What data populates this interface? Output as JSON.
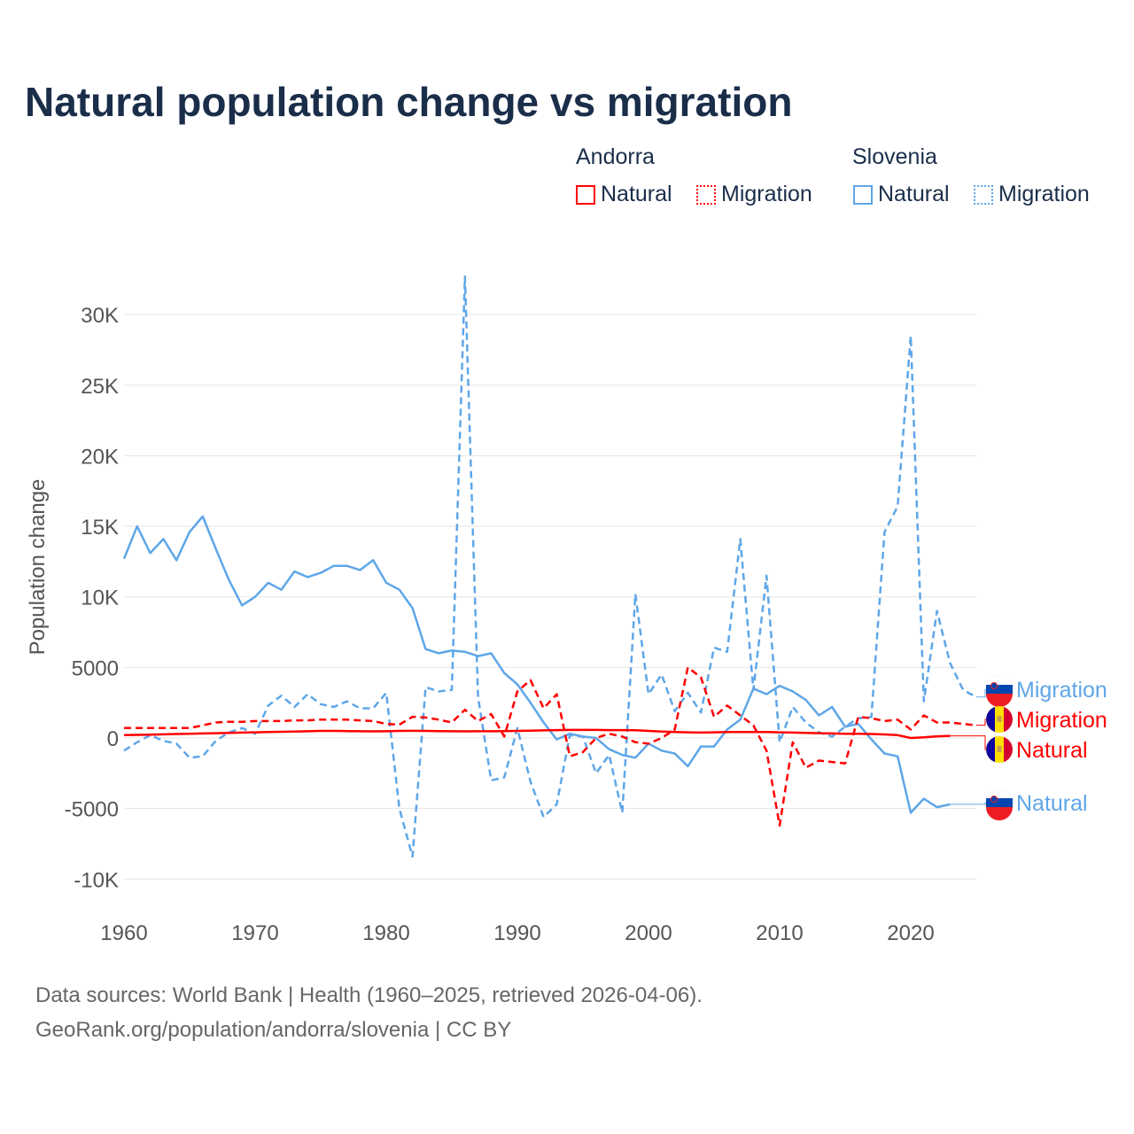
{
  "title": "Natural population change vs migration",
  "legend": {
    "groups": [
      {
        "name": "Andorra",
        "items": [
          {
            "label": "Natural",
            "style": "solid"
          },
          {
            "label": "Migration",
            "style": "dotted"
          }
        ]
      },
      {
        "name": "Slovenia",
        "items": [
          {
            "label": "Natural",
            "style": "solid"
          },
          {
            "label": "Migration",
            "style": "dotted"
          }
        ]
      }
    ]
  },
  "footer": {
    "line1": "Data sources: World Bank | Health (1960–2025, retrieved 2026-04-06).",
    "line2": "GeoRank.org/population/andorra/slovenia | CC BY"
  },
  "colors": {
    "andorra": "#ff0000",
    "slovenia": "#5ea6e8"
  },
  "chart_data": {
    "type": "line",
    "title": "Natural population change vs migration",
    "xlabel": "",
    "ylabel": "Population change",
    "xlim": [
      1960,
      2025
    ],
    "ylim": [
      -11000,
      33000
    ],
    "x_ticks": [
      1960,
      1970,
      1980,
      1990,
      2000,
      2010,
      2020
    ],
    "x_tick_labels": [
      "1960",
      "1970",
      "1980",
      "1990",
      "2000",
      "2010",
      "2020"
    ],
    "y_ticks": [
      -10000,
      -5000,
      0,
      5000,
      10000,
      15000,
      20000,
      25000,
      30000
    ],
    "y_tick_labels": [
      "-10K",
      "-5000",
      "0",
      "5000",
      "10K",
      "15K",
      "20K",
      "25K",
      "30K"
    ],
    "grid": true,
    "legend_position": "top-right",
    "series": [
      {
        "name": "Slovenia Natural",
        "country": "Slovenia",
        "kind": "natural",
        "color": "#5ea6e8",
        "dash": false,
        "start": 1960,
        "values": [
          12700,
          15000,
          13100,
          14100,
          12600,
          14600,
          15700,
          13400,
          11200,
          9400,
          10000,
          11000,
          10500,
          11800,
          11400,
          11700,
          12200,
          12200,
          11900,
          12600,
          11000,
          10500,
          9200,
          6300,
          6000,
          6200,
          6100,
          5800,
          6000,
          4600,
          3800,
          2500,
          1100,
          -100,
          300,
          100,
          0,
          -800,
          -1200,
          -1400,
          -400,
          -900,
          -1100,
          -2000,
          -600,
          -600,
          600,
          1300,
          3500,
          3100,
          3700,
          3300,
          2700,
          1600,
          2200,
          800,
          1000,
          -100,
          -1100,
          -1300,
          -5300,
          -4300,
          -4900,
          -4700
        ],
        "end_label": "Natural"
      },
      {
        "name": "Slovenia Migration",
        "country": "Slovenia",
        "kind": "migration",
        "color": "#5ea6e8",
        "dash": true,
        "start": 1960,
        "values": [
          -900,
          -300,
          200,
          -200,
          -400,
          -1400,
          -1300,
          -200,
          400,
          700,
          300,
          2300,
          3000,
          2200,
          3100,
          2400,
          2200,
          2600,
          2100,
          2100,
          3200,
          -5000,
          -8400,
          3600,
          3300,
          3400,
          32700,
          2900,
          -3000,
          -2800,
          700,
          -3100,
          -5600,
          -4700,
          200,
          100,
          -2500,
          -1200,
          -5300,
          10200,
          3100,
          4500,
          1900,
          3200,
          1800,
          6400,
          6100,
          14100,
          3400,
          11500,
          -300,
          2200,
          1100,
          400,
          100,
          800,
          1400,
          1500,
          14600,
          16400,
          28500,
          2600,
          9000,
          5300,
          3400,
          2900
        ],
        "end_label": "Migration"
      },
      {
        "name": "Andorra Natural",
        "country": "Andorra",
        "kind": "natural",
        "color": "#ff0000",
        "dash": false,
        "start": 1960,
        "values": [
          200,
          220,
          240,
          260,
          280,
          300,
          320,
          340,
          360,
          380,
          400,
          420,
          440,
          460,
          480,
          500,
          500,
          490,
          480,
          470,
          480,
          500,
          510,
          500,
          490,
          480,
          470,
          480,
          480,
          490,
          500,
          520,
          540,
          560,
          570,
          570,
          570,
          560,
          560,
          550,
          500,
          450,
          430,
          400,
          380,
          400,
          420,
          430,
          430,
          420,
          400,
          380,
          360,
          340,
          320,
          300,
          300,
          280,
          250,
          200,
          0,
          50,
          120,
          150
        ],
        "end_label": "Natural"
      },
      {
        "name": "Andorra Migration",
        "country": "Andorra",
        "kind": "migration",
        "color": "#ff0000",
        "dash": true,
        "start": 1960,
        "values": [
          700,
          700,
          700,
          700,
          700,
          700,
          900,
          1100,
          1150,
          1150,
          1200,
          1200,
          1200,
          1250,
          1250,
          1300,
          1300,
          1300,
          1250,
          1200,
          1000,
          950,
          1500,
          1450,
          1300,
          1100,
          2000,
          1200,
          1700,
          100,
          3300,
          4100,
          2100,
          3100,
          -1300,
          -1000,
          0,
          300,
          100,
          -300,
          -400,
          0,
          600,
          5000,
          4300,
          1500,
          2300,
          1600,
          900,
          -900,
          -6200,
          -300,
          -2100,
          -1600,
          -1700,
          -1800,
          1500,
          1400,
          1200,
          1300,
          600,
          1600,
          1100,
          1100,
          1000,
          900
        ],
        "end_label": "Migration"
      }
    ]
  }
}
